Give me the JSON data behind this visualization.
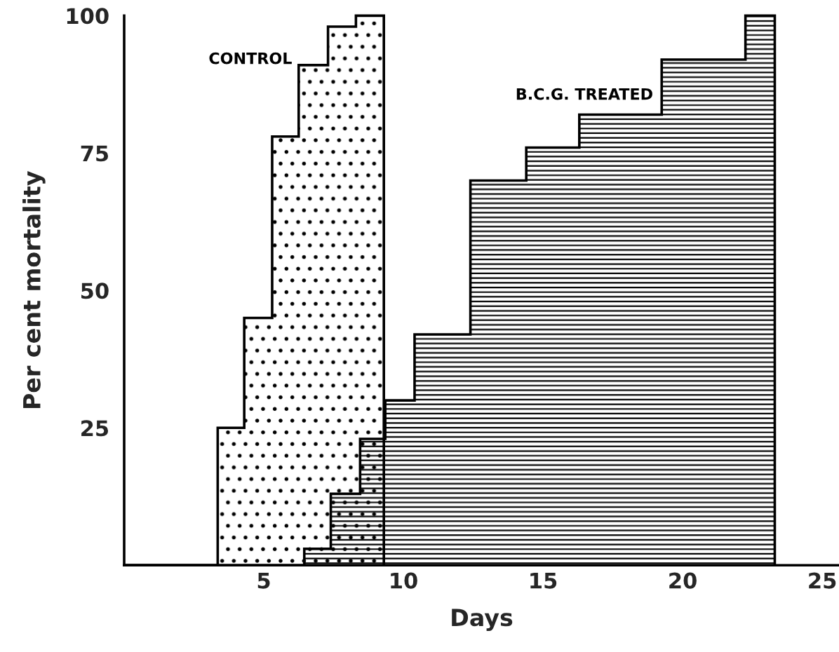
{
  "chart_data": {
    "type": "step",
    "xlabel": "Days",
    "ylabel": "Per cent mortality",
    "xlim": [
      0,
      25.6
    ],
    "xticks": [
      5,
      10,
      15,
      20,
      25
    ],
    "ylim": [
      0,
      100
    ],
    "yticks": [
      25,
      50,
      75,
      100
    ],
    "grid": false,
    "legend": false,
    "series": [
      {
        "name": "CONTROL",
        "color": "#000000",
        "x": [
          0,
          3.35,
          4.3,
          5.3,
          6.25,
          7.3,
          8.3,
          9.3
        ],
        "values": [
          0,
          25,
          45,
          78,
          91,
          98,
          100,
          0
        ]
      },
      {
        "name": "B.C.G. TREATED",
        "color": "#000000",
        "x": [
          0,
          6.45,
          7.4,
          8.45,
          9.35,
          10.4,
          12.4,
          14.4,
          16.3,
          19.25,
          22.25,
          23.3
        ],
        "values": [
          0,
          3,
          13,
          23,
          30,
          42,
          70,
          76,
          82,
          92,
          100,
          0
        ]
      }
    ]
  }
}
